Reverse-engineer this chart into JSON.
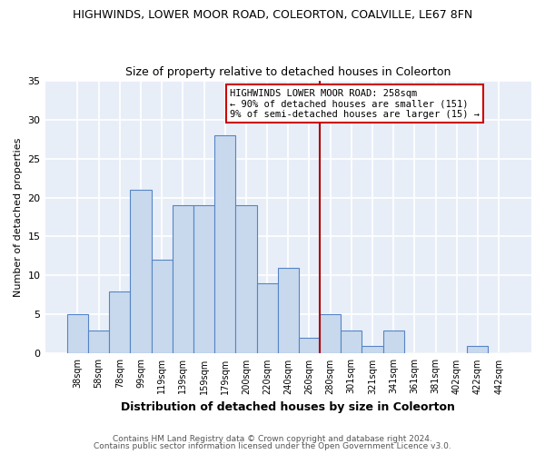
{
  "title": "HIGHWINDS, LOWER MOOR ROAD, COLEORTON, COALVILLE, LE67 8FN",
  "subtitle": "Size of property relative to detached houses in Coleorton",
  "xlabel": "Distribution of detached houses by size in Coleorton",
  "ylabel": "Number of detached properties",
  "footnote1": "Contains HM Land Registry data © Crown copyright and database right 2024.",
  "footnote2": "Contains public sector information licensed under the Open Government Licence v3.0.",
  "bin_labels": [
    "38sqm",
    "58sqm",
    "78sqm",
    "99sqm",
    "119sqm",
    "139sqm",
    "159sqm",
    "179sqm",
    "200sqm",
    "220sqm",
    "240sqm",
    "260sqm",
    "280sqm",
    "301sqm",
    "321sqm",
    "341sqm",
    "361sqm",
    "381sqm",
    "402sqm",
    "422sqm",
    "442sqm"
  ],
  "bar_heights": [
    5,
    3,
    8,
    21,
    12,
    19,
    19,
    28,
    19,
    9,
    11,
    2,
    5,
    3,
    1,
    3,
    0,
    0,
    0,
    1,
    0
  ],
  "bar_color": "#c8d9ee",
  "bar_edge_color": "#5585c5",
  "vline_x": 11.5,
  "vline_color": "#aa0000",
  "ylim": [
    0,
    35
  ],
  "yticks": [
    0,
    5,
    10,
    15,
    20,
    25,
    30,
    35
  ],
  "annotation_title": "HIGHWINDS LOWER MOOR ROAD: 258sqm",
  "annotation_line1": "← 90% of detached houses are smaller (151)",
  "annotation_line2": "9% of semi-detached houses are larger (15) →",
  "background_color": "#ffffff",
  "plot_bg_color": "#e8eef8"
}
